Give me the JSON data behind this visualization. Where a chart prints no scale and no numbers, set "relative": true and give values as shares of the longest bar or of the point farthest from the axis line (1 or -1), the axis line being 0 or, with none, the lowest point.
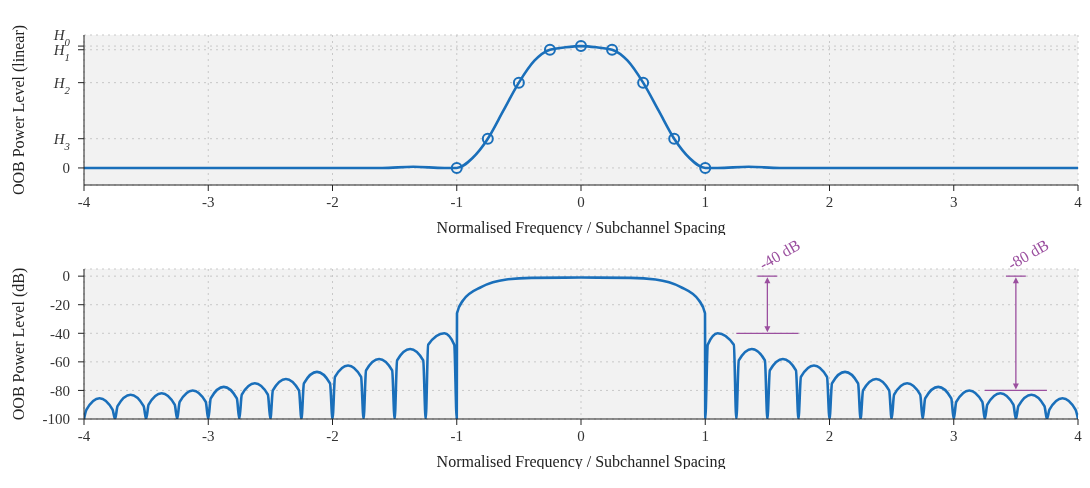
{
  "chart_data": [
    {
      "type": "line",
      "xlabel": "Normalised Frequency / Subchannel Spacing",
      "ylabel": "OOB Power Level (linear)",
      "xlim": [
        -4,
        4
      ],
      "xticks": [
        -4,
        -3,
        -2,
        -1,
        0,
        1,
        2,
        3,
        4
      ],
      "relative": true,
      "grid": true,
      "annotations": [
        "H$_{0}$",
        "H$_{1}$",
        "H$_{2}$",
        "H$_{3}$",
        "0"
      ],
      "series": [
        {
          "color": "#1a6fba",
          "marker": "none",
          "x": [
            -4,
            -1.6,
            -1.35,
            -1.1,
            -1,
            -0.875,
            -0.75,
            -0.625,
            -0.5,
            -0.375,
            -0.25,
            -0.125,
            0,
            0.125,
            0.25,
            0.375,
            0.5,
            0.625,
            0.75,
            0.875,
            1,
            1.1,
            1.35,
            1.6,
            4
          ],
          "values": [
            0,
            0,
            0.01,
            0,
            0,
            0.08,
            0.24,
            0.47,
            0.7,
            0.88,
            0.97,
            0.99,
            1,
            0.99,
            0.97,
            0.88,
            0.7,
            0.47,
            0.24,
            0.08,
            0,
            0,
            0.01,
            0,
            0
          ]
        },
        {
          "type": "scatter",
          "color": "#1a6fba",
          "marker": "circle",
          "x": [
            -1,
            -0.75,
            -0.5,
            -0.25,
            0,
            0.25,
            0.5,
            0.75,
            1
          ],
          "values": [
            0,
            0.24,
            0.7,
            0.97,
            1,
            0.97,
            0.7,
            0.24,
            0
          ]
        }
      ]
    },
    {
      "type": "line",
      "xlabel": "Normalised Frequency / Subchannel Spacing",
      "ylabel": "OOB Power Level (dB)",
      "xlim": [
        -4,
        4
      ],
      "xticks": [
        -4,
        -3,
        -2,
        -1,
        0,
        1,
        2,
        3,
        4
      ],
      "ylim": [
        -100,
        5
      ],
      "yticks": [
        -100,
        -80,
        -60,
        -40,
        -20,
        0
      ],
      "grid": true,
      "annotations": [
        "-40 dB",
        "-80 dB"
      ],
      "series": [
        {
          "color": "#1a6fba",
          "marker": "none",
          "x": [
            -4,
            -3.98,
            -3.875,
            -3.77,
            -3.75,
            -3.73,
            -3.625,
            -3.52,
            -3.5,
            -3.48,
            -3.375,
            -3.27,
            -3.25,
            -3.23,
            -3.125,
            -3.02,
            -3,
            -2.98,
            -2.875,
            -2.77,
            -2.75,
            -2.73,
            -2.625,
            -2.52,
            -2.5,
            -2.48,
            -2.375,
            -2.27,
            -2.25,
            -2.23,
            -2.125,
            -2.02,
            -2,
            -1.98,
            -1.875,
            -1.77,
            -1.75,
            -1.73,
            -1.625,
            -1.52,
            -1.5,
            -1.48,
            -1.375,
            -1.27,
            -1.25,
            -1.23,
            -1.1,
            -1.02,
            -1,
            -0.998,
            -0.95,
            -0.8,
            -0.6,
            -0.4,
            0,
            0.4,
            0.6,
            0.8,
            0.95,
            0.998,
            1,
            1.02,
            1.1,
            1.23,
            1.25,
            1.27,
            1.375,
            1.48,
            1.5,
            1.52,
            1.625,
            1.73,
            1.75,
            1.77,
            1.875,
            1.98,
            2,
            2.02,
            2.125,
            2.23,
            2.25,
            2.27,
            2.375,
            2.48,
            2.5,
            2.52,
            2.625,
            2.73,
            2.75,
            2.77,
            2.875,
            2.98,
            3,
            3.02,
            3.125,
            3.23,
            3.25,
            3.27,
            3.375,
            3.48,
            3.5,
            3.52,
            3.625,
            3.73,
            3.75,
            3.77,
            3.875,
            3.98,
            4
          ],
          "values": [
            -100,
            -93.5,
            -85.5,
            -93.5,
            -100,
            -91,
            -83,
            -91,
            -100,
            -90,
            -82,
            -90,
            -100,
            -88,
            -80,
            -88,
            -100,
            -85.5,
            -77.5,
            -85.5,
            -100,
            -83,
            -75,
            -83,
            -100,
            -80,
            -72,
            -80,
            -100,
            -75,
            -67,
            -75,
            -100,
            -70.5,
            -62.5,
            -70.5,
            -100,
            -66,
            -58,
            -66,
            -100,
            -59,
            -51,
            -59,
            -100,
            -48,
            -40,
            -48,
            -100,
            -26,
            -17,
            -7.5,
            -2.3,
            -1.2,
            -1,
            -1.2,
            -2.3,
            -7.5,
            -17,
            -26,
            -100,
            -48,
            -40,
            -48,
            -100,
            -59,
            -51,
            -59,
            -100,
            -66,
            -58,
            -66,
            -100,
            -70.5,
            -62.5,
            -70.5,
            -100,
            -75,
            -67,
            -75,
            -100,
            -80,
            -72,
            -80,
            -100,
            -83,
            -75,
            -83,
            -100,
            -85.5,
            -77.5,
            -85.5,
            -100,
            -88,
            -80,
            -88,
            -100,
            -90,
            -82,
            -90,
            -100,
            -91,
            -83,
            -91,
            -100,
            -93.5,
            -85.5,
            -93.5,
            -100
          ]
        }
      ]
    }
  ]
}
